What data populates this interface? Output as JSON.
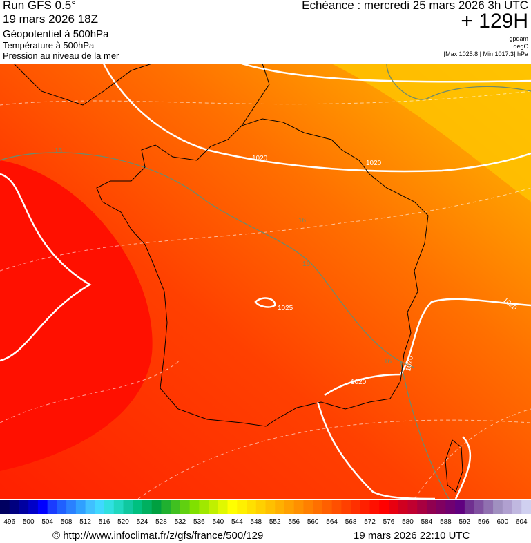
{
  "header": {
    "run": "Run GFS 0.5°",
    "date": "19 mars 2026 18Z",
    "field1": "Géopotentiel à 500hPa",
    "field2": "Température à 500hPa",
    "field3": "Pression au niveau de la mer",
    "valid": "Echéance : mercredi 25 mars 2026 3h UTC",
    "lead": "+ 129H",
    "unit1": "gpdam",
    "unit2": "degC",
    "range": "[Max 1025.8 | Min 1017.3] hPa"
  },
  "map": {
    "contour_labels": [
      "1020",
      "1020",
      "1025",
      "1020",
      "1020",
      "1020",
      "16",
      "16",
      "16",
      "15"
    ]
  },
  "colorbar": {
    "colors": [
      "#000060",
      "#00007f",
      "#0000a0",
      "#0000c8",
      "#0000ff",
      "#1a3cff",
      "#2060ff",
      "#2a80ff",
      "#30a0ff",
      "#40c0ff",
      "#40d8ff",
      "#30e0e0",
      "#20d8c0",
      "#10c8a0",
      "#00c080",
      "#00b060",
      "#00a040",
      "#20b030",
      "#40c020",
      "#60d010",
      "#80e000",
      "#a0e800",
      "#c0f000",
      "#e0f800",
      "#ffff00",
      "#fff000",
      "#ffe000",
      "#ffd000",
      "#ffc000",
      "#ffb000",
      "#ffa000",
      "#ff9000",
      "#ff8000",
      "#ff7000",
      "#ff6000",
      "#ff5000",
      "#ff4000",
      "#ff3000",
      "#ff2000",
      "#ff1000",
      "#ff0000",
      "#e80010",
      "#d00020",
      "#c00030",
      "#a80040",
      "#900050",
      "#800060",
      "#700070",
      "#600080",
      "#703090",
      "#8050a0",
      "#9070b0",
      "#a090c0",
      "#b0a0d0",
      "#c0b8e0",
      "#d0d0f0"
    ],
    "labels": [
      496,
      500,
      504,
      508,
      512,
      516,
      520,
      524,
      528,
      532,
      536,
      540,
      544,
      548,
      552,
      556,
      560,
      564,
      568,
      572,
      576,
      580,
      584,
      588,
      592,
      596,
      600,
      604
    ]
  },
  "footer": {
    "url": "© http://www.infoclimat.fr/z/gfs/france/500/129",
    "timestamp": "19 mars 2026 22:10 UTC"
  }
}
